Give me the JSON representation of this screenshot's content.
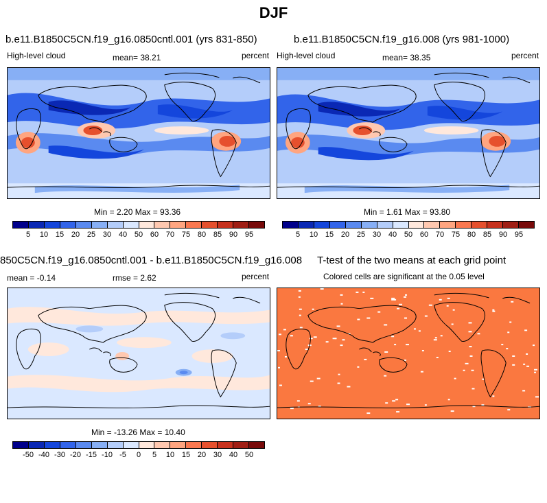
{
  "title": "DJF",
  "panels": [
    {
      "title": "b.e11.B1850C5CN.f19_g16.0850cntl.001 (yrs 831-850)",
      "left_label": "High-level cloud",
      "center_label": "mean=  38.21",
      "right_label": "percent",
      "stats": "Min =   2.20 Max =  93.36",
      "map_name": "control-cloud-map"
    },
    {
      "title": "b.e11.B1850C5CN.f19_g16.008 (yrs 981-1000)",
      "left_label": "High-level cloud",
      "center_label": "mean=  38.35",
      "right_label": "percent",
      "stats": "Min =   1.61 Max =  93.80",
      "map_name": "experiment-cloud-map"
    },
    {
      "title": "850C5CN.f19_g16.0850cntl.001 - b.e11.B1850C5CN.f19_g16.008",
      "left_label": "mean =  -0.14",
      "center_label": "rmse =   2.62",
      "right_label": "percent",
      "stats": "Min = -13.26 Max =  10.40",
      "map_name": "difference-map"
    },
    {
      "title": "T-test of the two means at each grid point",
      "subtitle": "Colored cells are significant at the 0.05 level",
      "map_name": "significance-map"
    }
  ],
  "colorbar_main": {
    "colors": [
      "#00008b",
      "#0a28b4",
      "#1446dc",
      "#3264ea",
      "#5a8af0",
      "#87aff5",
      "#b4cdfa",
      "#dae8ff",
      "#ffe8dc",
      "#ffc8b0",
      "#ffa580",
      "#fa7850",
      "#e6502d",
      "#c8321e",
      "#a01e14",
      "#780a0a"
    ],
    "labels": [
      "5",
      "10",
      "15",
      "20",
      "25",
      "30",
      "40",
      "50",
      "60",
      "70",
      "75",
      "80",
      "85",
      "90",
      "95"
    ]
  },
  "colorbar_diff": {
    "colors": [
      "#00008b",
      "#0a28b4",
      "#1446dc",
      "#3264ea",
      "#5a8af0",
      "#87aff5",
      "#b4cdfa",
      "#dae8ff",
      "#ffe8dc",
      "#ffc8b0",
      "#ffa580",
      "#fa7850",
      "#e6502d",
      "#c8321e",
      "#a01e14",
      "#780a0a"
    ],
    "labels": [
      "-50",
      "-40",
      "-30",
      "-20",
      "-15",
      "-10",
      "-5",
      "0",
      "5",
      "10",
      "15",
      "20",
      "30",
      "40",
      "50"
    ]
  },
  "significance_color": "#fa7840"
}
